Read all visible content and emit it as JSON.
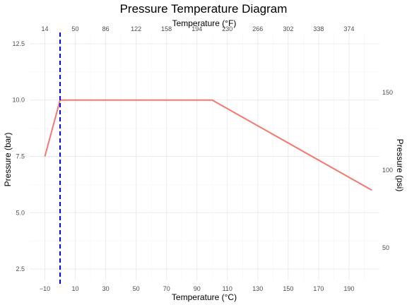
{
  "chart_data": {
    "type": "line",
    "title": "Pressure Temperature Diagram",
    "xlabel": "Temperature (°C)",
    "ylabel": "Pressure (bar)",
    "x2label": "Temperature (°F)",
    "y2label": "Pressure (psi)",
    "xlim": [
      -20,
      210
    ],
    "ylim": [
      2.0,
      13.0
    ],
    "x_ticks": [
      -10,
      10,
      30,
      50,
      70,
      90,
      110,
      130,
      150,
      170,
      190
    ],
    "x_tick_labels": [
      "−10",
      "10",
      "30",
      "50",
      "70",
      "90",
      "110",
      "130",
      "150",
      "170",
      "190"
    ],
    "y_ticks": [
      2.5,
      5.0,
      7.5,
      10.0,
      12.5
    ],
    "y_tick_labels": [
      "2.5",
      "5.0",
      "7.5",
      "10.0",
      "12.5"
    ],
    "x2_ticks": [
      14,
      50,
      86,
      122,
      158,
      194,
      230,
      266,
      302,
      338,
      374
    ],
    "x2_tick_labels": [
      "14",
      "50",
      "86",
      "122",
      "158",
      "194",
      "230",
      "266",
      "302",
      "338",
      "374"
    ],
    "y2_ticks": [
      50,
      100,
      150
    ],
    "y2_tick_labels": [
      "50",
      "100",
      "150"
    ],
    "series": [
      {
        "color": "#F8766D",
        "x": [
          -10,
          0,
          100,
          205
        ],
        "y": [
          7.5,
          10.0,
          10.0,
          6.0
        ]
      }
    ],
    "vline": {
      "x": 0,
      "color": "#0000FF",
      "style": "dashed"
    },
    "grid": true,
    "legend": "none"
  }
}
